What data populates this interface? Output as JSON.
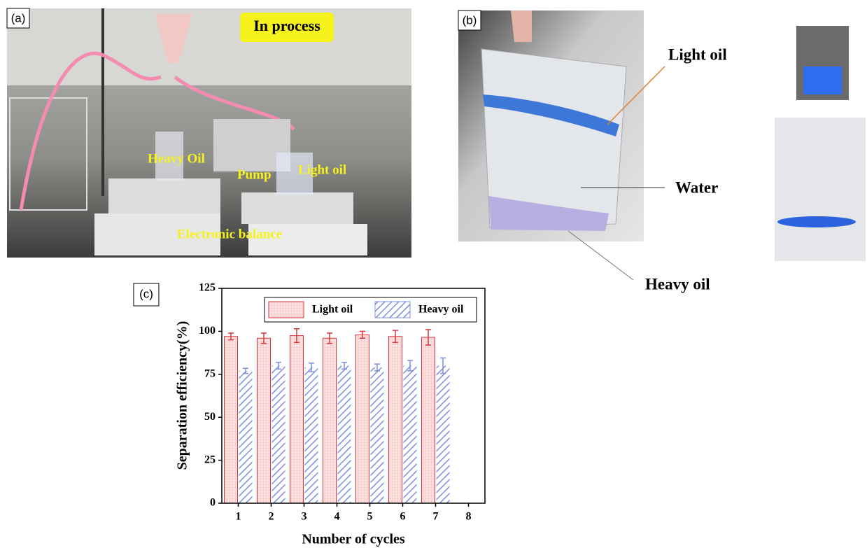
{
  "photos": {
    "a": {
      "panel_label": "(a)",
      "status": "In process",
      "labels": [
        "Heavy Oil",
        "Pump",
        "Light oil",
        "Electronic balance"
      ]
    },
    "b": {
      "panel_label": "(b)",
      "labels": [
        "Light oil",
        "Water",
        "Heavy oil"
      ]
    }
  },
  "chart_data": {
    "type": "bar",
    "panel_label": "(c)",
    "x_label": "Number of cycles",
    "y_label": "Separation efficiency(%)",
    "categories": [
      "1",
      "2",
      "3",
      "4",
      "5",
      "6",
      "7",
      "8"
    ],
    "series": [
      {
        "name": "Light oil",
        "color": "#d9363e",
        "fill": "#fbe0e0",
        "values": [
          97,
          96,
          97.5,
          96,
          98,
          97,
          96.5,
          null
        ],
        "errors": [
          2,
          3,
          4,
          3,
          2,
          3.5,
          4.5,
          null
        ]
      },
      {
        "name": "Heavy oil",
        "color": "#7d8fe0",
        "fill": "#ffffff",
        "values": [
          77,
          80,
          79,
          80,
          79,
          80,
          80,
          null
        ],
        "errors": [
          1.5,
          2,
          2.5,
          2,
          2,
          3,
          4.5,
          null
        ]
      }
    ],
    "ylim": [
      0,
      125
    ],
    "yticks": [
      0,
      25,
      50,
      75,
      100,
      125
    ],
    "legend": "upper right"
  }
}
